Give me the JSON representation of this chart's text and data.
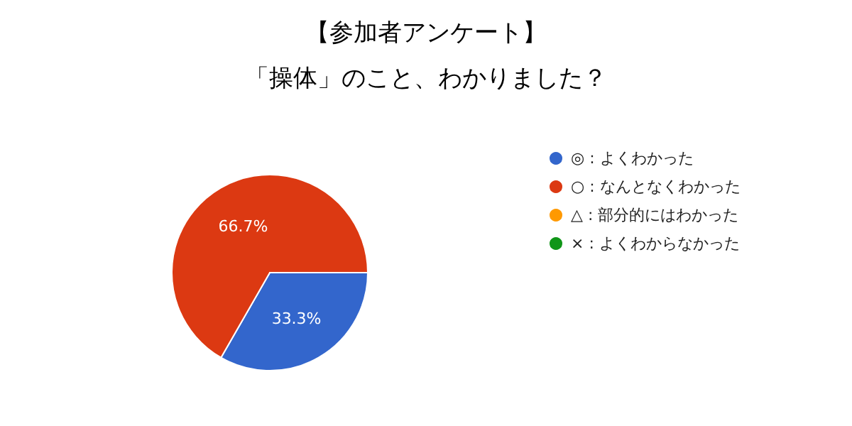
{
  "chart_data": {
    "type": "pie",
    "title": "【参加者アンケート】",
    "subtitle": "「操体」のこと、わかりました？",
    "categories": [
      "◎ : よくわかった",
      "○ : なんとなくわかった",
      "△ : 部分的にはわかった",
      "× : よくわからなかった"
    ],
    "values": [
      33.3,
      66.7,
      0,
      0
    ],
    "colors": [
      "#3366cc",
      "#dc3912",
      "#ff9900",
      "#109618"
    ],
    "value_labels": [
      "33.3%",
      "66.7%",
      null,
      null
    ],
    "legend": "right"
  }
}
